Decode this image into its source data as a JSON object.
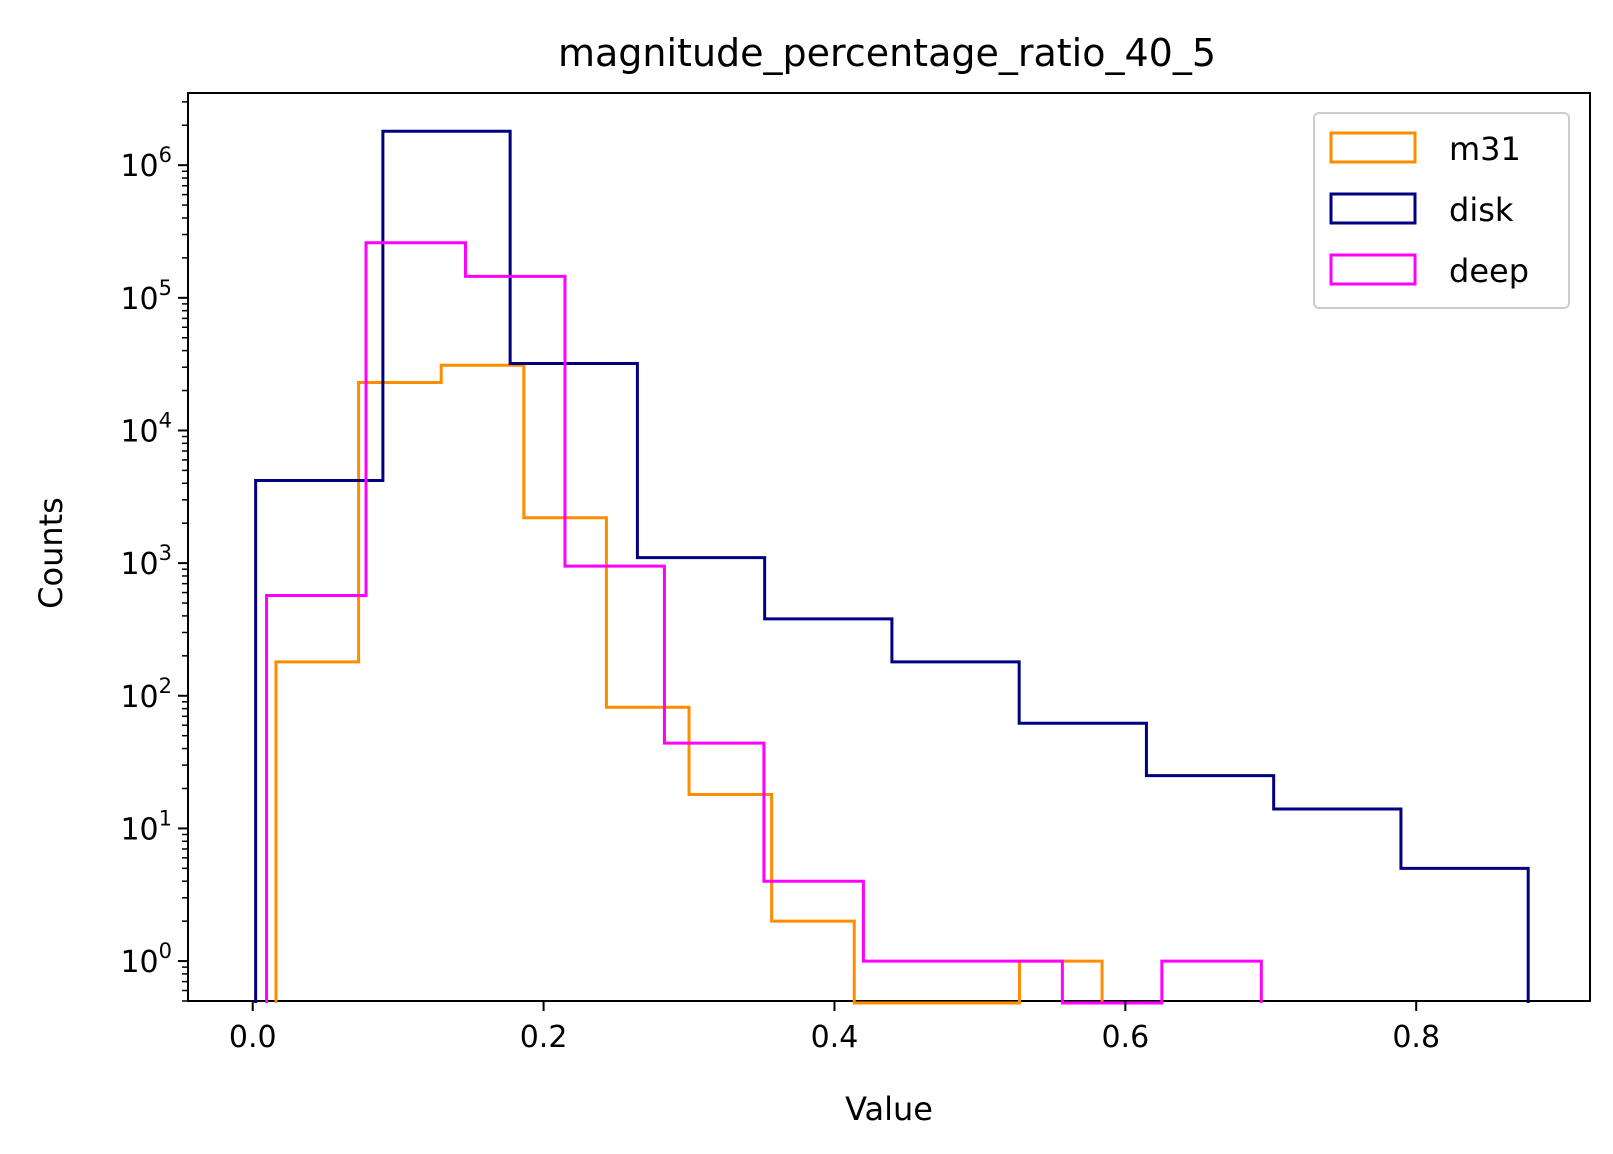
{
  "chart_data": {
    "type": "histogram",
    "title": "magnitude_percentage_ratio_40_5",
    "xlabel": "Value",
    "ylabel": "Counts",
    "xlim": [
      -0.0445,
      0.9195
    ],
    "ylim": [
      0.5,
      3500000
    ],
    "yscale": "log",
    "xticks": [
      0.0,
      0.2,
      0.4,
      0.6,
      0.8
    ],
    "xtick_labels": [
      "0.0",
      "0.2",
      "0.4",
      "0.6",
      "0.8"
    ],
    "yticks": [
      1,
      10,
      100,
      1000,
      10000,
      100000,
      1000000
    ],
    "ytick_labels": [
      {
        "base": "10",
        "exp": "0"
      },
      {
        "base": "10",
        "exp": "1"
      },
      {
        "base": "10",
        "exp": "2"
      },
      {
        "base": "10",
        "exp": "3"
      },
      {
        "base": "10",
        "exp": "4"
      },
      {
        "base": "10",
        "exp": "5"
      },
      {
        "base": "10",
        "exp": "6"
      }
    ],
    "legend": {
      "position": "upper right"
    },
    "series": [
      {
        "name": "m31",
        "color": "#ff8c00",
        "bin_edges": [
          0.016,
          0.0728,
          0.1296,
          0.1864,
          0.2432,
          0.3,
          0.3568,
          0.4136,
          0.4704,
          0.5272,
          0.584
        ],
        "counts": [
          180,
          23000,
          31000,
          2200,
          82,
          18,
          2,
          0,
          0,
          1
        ]
      },
      {
        "name": "disk",
        "color": "#000080",
        "bin_edges": [
          0.002,
          0.0895,
          0.177,
          0.2645,
          0.352,
          0.4395,
          0.527,
          0.6145,
          0.702,
          0.7895,
          0.877
        ],
        "counts": [
          4200,
          1800000,
          32000,
          1100,
          380,
          180,
          62,
          25,
          14,
          5
        ]
      },
      {
        "name": "deep",
        "color": "#ff00ff",
        "bin_edges": [
          0.0095,
          0.0779,
          0.1463,
          0.2147,
          0.2831,
          0.3515,
          0.4199,
          0.4883,
          0.5567,
          0.6251,
          0.6935
        ],
        "counts": [
          570,
          260000,
          145000,
          950,
          44,
          4,
          1,
          1,
          0,
          1
        ]
      }
    ]
  }
}
